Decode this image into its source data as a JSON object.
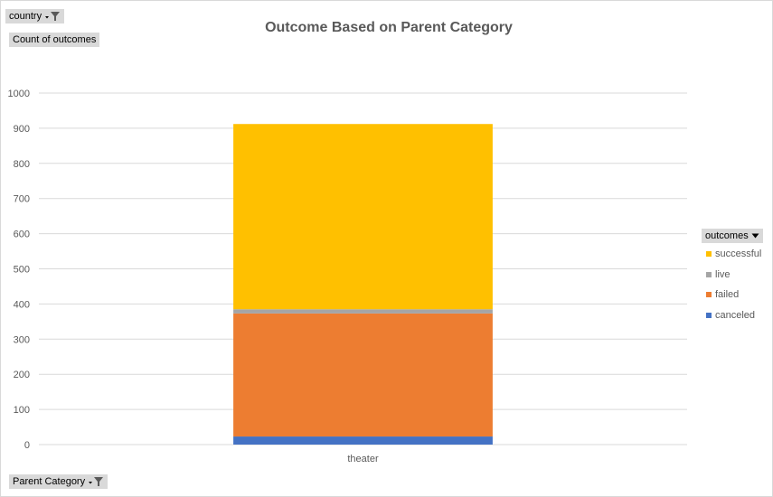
{
  "filters": {
    "country_label": "country",
    "count_label": "Count of outcomes",
    "legend_title": "outcomes",
    "axis_field_label": "Parent Category"
  },
  "icons": {
    "filter": "filter-icon",
    "dropdown": "dropdown-arrow-icon"
  },
  "chart_data": {
    "type": "bar",
    "stacked": true,
    "title": "Outcome Based on Parent Category",
    "xlabel": "",
    "ylabel": "",
    "categories": [
      "theater"
    ],
    "ylim": [
      0,
      1000
    ],
    "yticks": [
      0,
      100,
      200,
      300,
      400,
      500,
      600,
      700,
      800,
      900,
      1000
    ],
    "grid": true,
    "legend_placement": "right",
    "series": [
      {
        "name": "canceled",
        "values": [
          23
        ],
        "color": "#4472c4"
      },
      {
        "name": "failed",
        "values": [
          350
        ],
        "color": "#ed7d31"
      },
      {
        "name": "live",
        "values": [
          12
        ],
        "color": "#a5a5a5"
      },
      {
        "name": "successful",
        "values": [
          527
        ],
        "color": "#ffc000"
      }
    ],
    "legend_order": [
      "successful",
      "live",
      "failed",
      "canceled"
    ]
  }
}
